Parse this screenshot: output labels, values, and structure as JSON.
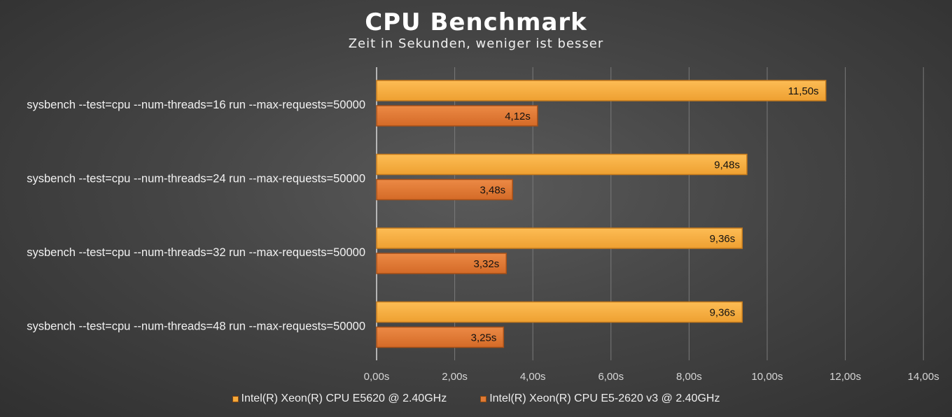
{
  "chart_data": {
    "type": "bar",
    "orientation": "horizontal",
    "title": "CPU Benchmark",
    "subtitle": "Zeit in Sekunden, weniger ist besser",
    "categories": [
      "sysbench --test=cpu --num-threads=16 run --max-requests=50000",
      "sysbench --test=cpu --num-threads=24 run --max-requests=50000",
      "sysbench --test=cpu --num-threads=32 run --max-requests=50000",
      "sysbench --test=cpu --num-threads=48 run --max-requests=50000"
    ],
    "series": [
      {
        "name": "Intel(R) Xeon(R) CPU E5620 @ 2.40GHz",
        "color": "#f5a93a",
        "values": [
          11.5,
          9.48,
          9.36,
          9.36
        ],
        "labels": [
          "11,50s",
          "9,48s",
          "9,36s",
          "9,36s"
        ]
      },
      {
        "name": "Intel(R) Xeon(R) CPU E5-2620 v3 @ 2.40GHz",
        "color": "#e07a35",
        "values": [
          4.12,
          3.48,
          3.32,
          3.25
        ],
        "labels": [
          "4,12s",
          "3,48s",
          "3,32s",
          "3,25s"
        ]
      }
    ],
    "xlim": [
      0,
      14
    ],
    "xticks": [
      0,
      2,
      4,
      6,
      8,
      10,
      12,
      14
    ],
    "xtick_labels": [
      "0,00s",
      "2,00s",
      "4,00s",
      "6,00s",
      "8,00s",
      "10,00s",
      "12,00s",
      "14,00s"
    ],
    "grid": true,
    "legend_position": "bottom"
  }
}
